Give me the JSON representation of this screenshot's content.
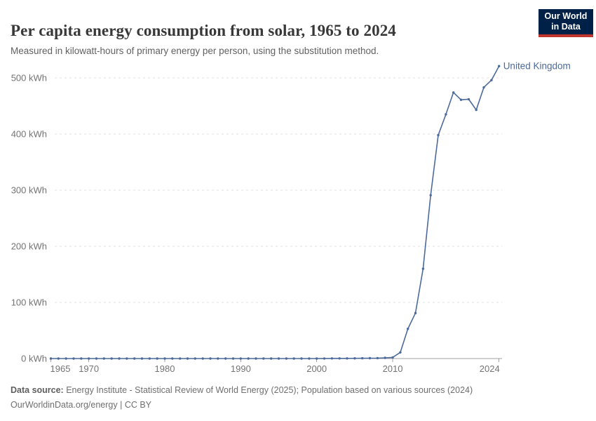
{
  "header": {
    "title": "Per capita energy consumption from solar, 1965 to 2024",
    "subtitle": "Measured in kilowatt-hours of primary energy per person, using the substitution method.",
    "logo": {
      "line1": "Our World",
      "line2": "in Data"
    }
  },
  "chart_data": {
    "type": "line",
    "title": "Per capita energy consumption from solar, 1965 to 2024",
    "xlabel": "",
    "ylabel": "kWh",
    "grid": "horizontal-dashed",
    "legend_position": "end-of-line-label",
    "xlim": [
      1965,
      2024
    ],
    "ylim": [
      0,
      520
    ],
    "x_ticks": [
      1965,
      1970,
      1980,
      1990,
      2000,
      2010,
      2024
    ],
    "y_ticks": [
      0,
      100,
      200,
      300,
      400,
      500
    ],
    "y_tick_format": "{v} kWh",
    "x": [
      1965,
      1966,
      1967,
      1968,
      1969,
      1970,
      1971,
      1972,
      1973,
      1974,
      1975,
      1976,
      1977,
      1978,
      1979,
      1980,
      1981,
      1982,
      1983,
      1984,
      1985,
      1986,
      1987,
      1988,
      1989,
      1990,
      1991,
      1992,
      1993,
      1994,
      1995,
      1996,
      1997,
      1998,
      1999,
      2000,
      2001,
      2002,
      2003,
      2004,
      2005,
      2006,
      2007,
      2008,
      2009,
      2010,
      2011,
      2012,
      2013,
      2014,
      2015,
      2016,
      2017,
      2018,
      2019,
      2020,
      2021,
      2022,
      2023,
      2024
    ],
    "series": [
      {
        "name": "United Kingdom",
        "color": "#4c6a9c",
        "values": [
          0,
          0,
          0,
          0,
          0,
          0,
          0,
          0,
          0,
          0,
          0,
          0,
          0,
          0,
          0,
          0,
          0,
          0,
          0,
          0,
          0,
          0,
          0,
          0,
          0,
          0,
          0,
          0,
          0,
          0,
          0,
          0,
          0,
          0,
          0,
          0,
          0.1,
          0.2,
          0.3,
          0.3,
          0.4,
          0.5,
          0.6,
          0.8,
          1.2,
          2,
          11,
          53,
          81,
          160,
          291,
          398,
          435,
          474,
          461,
          462,
          443,
          483,
          496,
          521
        ]
      }
    ],
    "colors": {
      "axis_text": "#737373",
      "gridline": "#e2e2e2",
      "axis_line": "#a1a1a1"
    }
  },
  "footer": {
    "datasource_label": "Data source:",
    "datasource_text": " Energy Institute - Statistical Review of World Energy (2025); Population based on various sources (2024)",
    "link": "OurWorldinData.org/energy",
    "license": " | CC BY"
  }
}
